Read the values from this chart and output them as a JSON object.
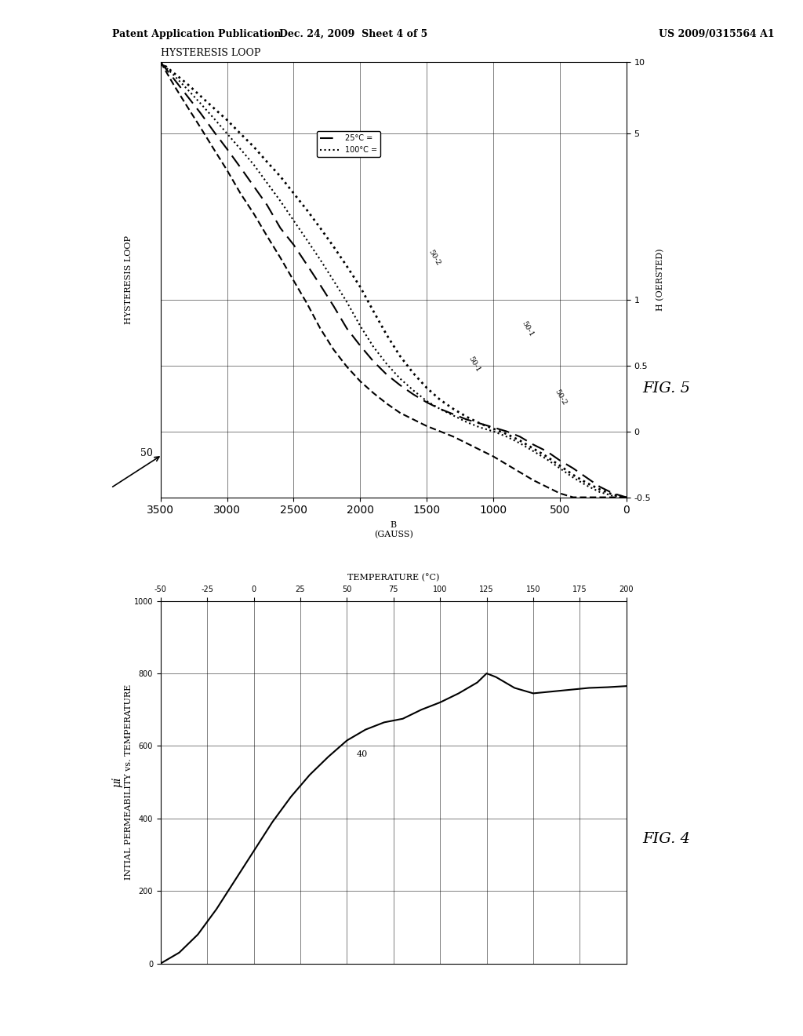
{
  "header_left": "Patent Application Publication",
  "header_mid": "Dec. 24, 2009  Sheet 4 of 5",
  "header_right": "US 2009/0315564 A1",
  "fig5": {
    "title": "HYSTERESIS LOOP",
    "xlabel": "B\n(GAUSS)",
    "ylabel": "H (OERSTED)",
    "x_ticks": [
      0,
      500,
      1000,
      1500,
      2000,
      2500,
      3000,
      3500
    ],
    "y_ticks_log": [
      -0.5,
      0,
      0.5,
      1,
      5,
      10
    ],
    "legend_25": "25°C =",
    "legend_100": "100°C =",
    "curve_50_1_25_B": [
      3500,
      3400,
      3300,
      3200,
      3100,
      3000,
      2900,
      2800,
      2700,
      2600,
      2500,
      2400,
      2300,
      2200,
      2100,
      2000,
      1900,
      1800,
      1700,
      1600,
      1500,
      1400,
      1300,
      1200,
      1100,
      1000,
      900,
      800,
      700,
      600,
      500,
      400,
      300,
      200,
      100,
      0
    ],
    "curve_50_1_25_H": [
      10,
      8.5,
      7.2,
      6.1,
      5.1,
      4.3,
      3.6,
      3.0,
      2.5,
      2.0,
      1.7,
      1.4,
      1.15,
      0.95,
      0.78,
      0.65,
      0.53,
      0.43,
      0.35,
      0.28,
      0.22,
      0.17,
      0.13,
      0.09,
      0.06,
      0.03,
      0.0,
      -0.04,
      -0.1,
      -0.15,
      -0.22,
      -0.28,
      -0.35,
      -0.42,
      -0.47,
      -0.5
    ],
    "curve_50_2_25_B": [
      3500,
      3400,
      3300,
      3200,
      3100,
      3000,
      2900,
      2800,
      2700,
      2600,
      2500,
      2400,
      2300,
      2200,
      2100,
      2000,
      1900,
      1800,
      1700,
      1600,
      1500,
      1400,
      1300,
      1200,
      1100,
      1000,
      900,
      800,
      700,
      600,
      500,
      400,
      300,
      200,
      100,
      0
    ],
    "curve_50_2_25_H": [
      10,
      8.0,
      6.5,
      5.3,
      4.3,
      3.5,
      2.8,
      2.3,
      1.85,
      1.5,
      1.2,
      0.97,
      0.78,
      0.62,
      0.49,
      0.38,
      0.29,
      0.21,
      0.14,
      0.09,
      0.04,
      0.0,
      -0.04,
      -0.09,
      -0.14,
      -0.19,
      -0.25,
      -0.31,
      -0.37,
      -0.42,
      -0.47,
      -0.5,
      -0.5,
      -0.5,
      -0.5,
      -0.5
    ],
    "curve_50_1_100_B": [
      3500,
      3400,
      3300,
      3200,
      3100,
      3000,
      2900,
      2800,
      2700,
      2600,
      2500,
      2400,
      2300,
      2200,
      2100,
      2000,
      1900,
      1800,
      1700,
      1600,
      1500,
      1400,
      1300,
      1200,
      1100,
      1000,
      900,
      800,
      700,
      600,
      500,
      400,
      300,
      200,
      100,
      0
    ],
    "curve_50_1_100_H": [
      10,
      8.8,
      7.7,
      6.7,
      5.8,
      5.0,
      4.3,
      3.7,
      3.1,
      2.6,
      2.15,
      1.78,
      1.47,
      1.2,
      0.98,
      0.8,
      0.64,
      0.51,
      0.4,
      0.31,
      0.23,
      0.17,
      0.12,
      0.07,
      0.03,
      0.0,
      -0.04,
      -0.09,
      -0.15,
      -0.21,
      -0.28,
      -0.35,
      -0.41,
      -0.46,
      -0.49,
      -0.5
    ],
    "curve_50_2_100_B": [
      3500,
      3400,
      3300,
      3200,
      3100,
      3000,
      2900,
      2800,
      2700,
      2600,
      2500,
      2400,
      2300,
      2200,
      2100,
      2000,
      1900,
      1800,
      1700,
      1600,
      1500,
      1400,
      1300,
      1200,
      1100,
      1000,
      900,
      800,
      700,
      600,
      500,
      400,
      300,
      200,
      100,
      0
    ],
    "curve_50_2_100_H": [
      10,
      9.0,
      8.1,
      7.2,
      6.4,
      5.7,
      5.0,
      4.4,
      3.8,
      3.3,
      2.8,
      2.38,
      2.0,
      1.67,
      1.38,
      1.13,
      0.91,
      0.73,
      0.57,
      0.44,
      0.33,
      0.24,
      0.17,
      0.11,
      0.06,
      0.02,
      -0.02,
      -0.07,
      -0.13,
      -0.19,
      -0.26,
      -0.33,
      -0.39,
      -0.44,
      -0.48,
      -0.5
    ],
    "label_50_1": "50-1",
    "label_50_2": "50-2",
    "ref_label": "50"
  },
  "fig4": {
    "title": "INTIAL PERMEABILITY vs. TEMPERATURE",
    "xlabel": "TEMPERATURE (°C)",
    "ylabel": "μi",
    "x_ticks": [
      -50,
      -25,
      0,
      25,
      50,
      75,
      100,
      125,
      150,
      175,
      200
    ],
    "y_ticks": [
      0,
      200,
      400,
      600,
      800,
      1000
    ],
    "xlim": [
      -50,
      200
    ],
    "ylim": [
      0,
      1000
    ],
    "curve_T": [
      -50,
      -40,
      -30,
      -20,
      -10,
      0,
      10,
      20,
      30,
      40,
      50,
      60,
      70,
      80,
      90,
      100,
      110,
      115,
      120,
      125,
      130,
      135,
      140,
      150,
      160,
      170,
      180,
      190,
      200
    ],
    "curve_mu": [
      0,
      30,
      80,
      150,
      230,
      310,
      390,
      460,
      520,
      570,
      615,
      645,
      665,
      675,
      700,
      720,
      745,
      760,
      775,
      800,
      790,
      775,
      760,
      745,
      750,
      755,
      760,
      762,
      765
    ],
    "label_40": "40",
    "ref_label": "40"
  },
  "bg_color": "#ffffff",
  "line_color": "#000000"
}
